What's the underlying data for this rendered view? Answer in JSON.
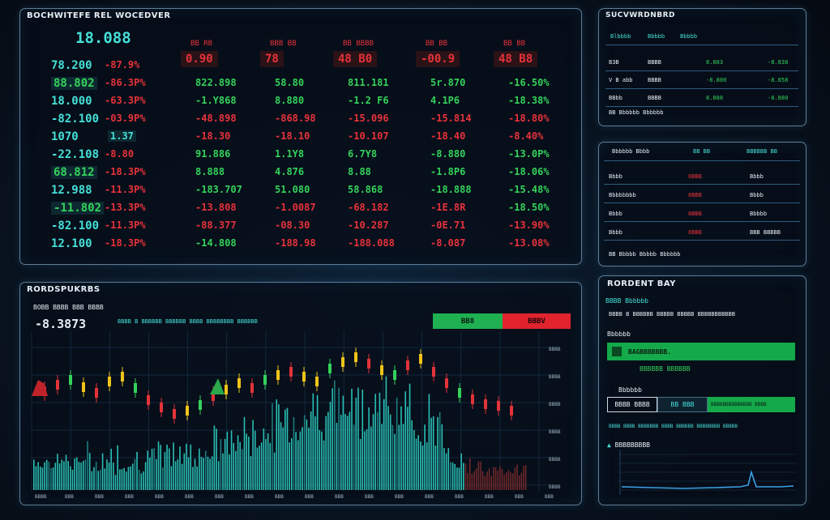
{
  "colors": {
    "green": "#34d25a",
    "red": "#e8323a",
    "cyan": "#45e0d8",
    "border": "#5d7d96"
  },
  "market": {
    "title": "BOCHWITEFE REL WOCEDVER",
    "headline_value": "18.088",
    "columns": [
      "BB RB",
      "BBB BB",
      "BB BBBB",
      "BB BB",
      "BB BB"
    ],
    "column_top": [
      "0.90",
      "78",
      "48 B0",
      "-00.9",
      "48 B8"
    ],
    "left_values": [
      {
        "a": "78.200",
        "b": "-87.9%"
      },
      {
        "a": "88.802",
        "b": "-86.3P%"
      },
      {
        "a": "18.000",
        "b": "-63.3P%"
      },
      {
        "a": "-82.100",
        "b": "-03.9P%"
      },
      {
        "a": "1070",
        "b": "1.37"
      },
      {
        "a": "-22.108",
        "b": "-8.80"
      },
      {
        "a": "68.812",
        "b": "-18.3P%"
      },
      {
        "a": "12.988",
        "b": "-11.3P%"
      },
      {
        "a": "-11.802",
        "b": "-13.3P%"
      },
      {
        "a": "-82.100",
        "b": "-11.3P%"
      },
      {
        "a": "12.100",
        "b": "-18.3P%"
      }
    ],
    "grid": [
      [
        "822.898",
        "58.80",
        "811.181",
        "5r.870",
        "-16.50%"
      ],
      [
        "-1.Y868",
        "8.880",
        "-1.2 F6",
        "4.1P6",
        "-18.38%"
      ],
      [
        "-48.898",
        "-868.98",
        "-15.096",
        "-15.814",
        "-18.80%"
      ],
      [
        "-18.30",
        "-18.10",
        "-10.107",
        "-18.40",
        "-8.40%"
      ],
      [
        "91.886",
        "1.1Y8",
        "6.7Y8",
        "-8.880",
        "-13.0P%"
      ],
      [
        "8.888",
        "4.876",
        "8.88",
        "-1.8P6",
        "-18.06%"
      ],
      [
        "-183.707",
        "51.080",
        "58.868",
        "-18.888",
        "-15.48%"
      ],
      [
        "-13.808",
        "-1.0087",
        "-68.182",
        "-1E.8R",
        "-18.50%"
      ],
      [
        "-88.377",
        "-08.30",
        "-10.287",
        "-0E.71",
        "-13.90%"
      ],
      [
        "-14.808",
        "-188.98",
        "-188.088",
        "-8.087",
        "-13.08%"
      ]
    ]
  },
  "summary": {
    "title": "SUCVWRDNBRD",
    "headers": [
      "Blbbbb",
      "Bbbbb",
      "Bbbbb"
    ],
    "rows": [
      {
        "a": "B3B",
        "b": "BBBB",
        "c": "8.883",
        "d": "-8.838"
      },
      {
        "a": "V B abb",
        "b": "BBBB",
        "c": "-8.800",
        "d": "-8.858"
      },
      {
        "a": "BBbb",
        "b": "BBBB",
        "c": "8.888",
        "d": "-8.880"
      }
    ],
    "footer": "BB Bbbbbb Bbbbbb"
  },
  "orders": {
    "headers": [
      "Bbbbbb Bbbb",
      "BB BB",
      "BBBBBB BB"
    ],
    "rows": [
      {
        "a": "Bbbb",
        "b": "8BBB",
        "c": "Bbbb"
      },
      {
        "a": "Bbbbbbbb",
        "b": "8BBB",
        "c": "Bbbb"
      },
      {
        "a": "Bbbb",
        "b": "8BBB",
        "c": "Bbbbb"
      },
      {
        "a": "Bbbb",
        "b": "8BBB",
        "c": "BBB BBBBB"
      }
    ],
    "footer": "BB Bbbbb Bbbbb Bbbbbb"
  },
  "chart_panel": {
    "title": "RORDSPUKRBS",
    "subtitle": "BOBB BBBB BBB BBBB",
    "price": "-8.3873",
    "ticker": "BBBB B BBBBBB BBBBBB BBBB BBBBBBBB BBBBBB",
    "buy_label": "BB8",
    "sell_label": "BBBV",
    "y_ticks": [
      "BBBB",
      "BBBB",
      "BBBB",
      "BBBB",
      "BBBB",
      "BBBB"
    ],
    "x_ticks": [
      "BBBB",
      "BBB",
      "BBB",
      "BBB",
      "BBB",
      "BBB",
      "BBB",
      "BBB",
      "BBB",
      "BBB",
      "BBB",
      "BBB",
      "BBB",
      "BBB",
      "BBB",
      "BBB",
      "BBB",
      "BBB"
    ]
  },
  "trade": {
    "title": "RORDENT BAY",
    "subtitle": "BBBB Bbbbbb",
    "desc": "BBBB B BBBBBB BBBBB BBBBB BBBBBBBBBBB",
    "price_label": "Bbbbbb",
    "green_bar_text": "BAGBBBBBBB.",
    "link_text": "BBBBBB BBBBBB",
    "size_label": "Bbbbbb",
    "input_a": "BBBB BBBB",
    "input_b": "BB BBB",
    "green_input": "BBBBBBBBBBBBBB BBBB",
    "note": "BBBB BBBB BBBBBBB BBBB BBBBBB BBBBBBBB BBBBB",
    "mini_title": "BBBBBBBBB"
  }
}
